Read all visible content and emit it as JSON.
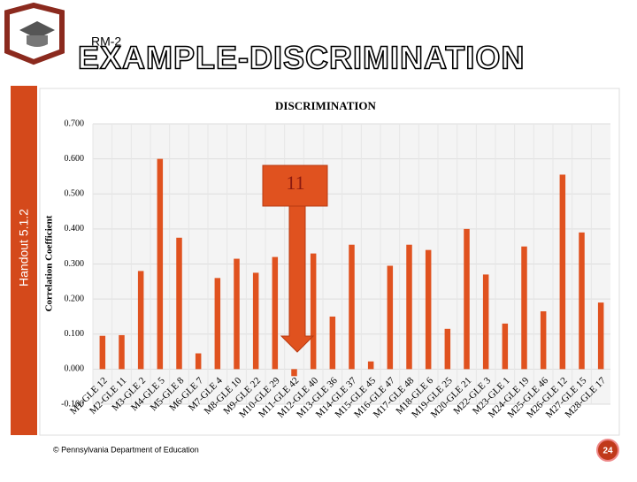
{
  "slide": {
    "tag": "RM-2",
    "title": "EXAMPLE-DISCRIMINATION",
    "side_label": "Handout 5.1.2",
    "footer": "© Pennsylvania Department of Education",
    "page_number": "24"
  },
  "chart_data": {
    "type": "bar",
    "title": "DISCRIMINATION",
    "y_label": "Correlation Coefficient",
    "callout": "11",
    "categories": [
      "M1-GLE 12",
      "M2-GLE 11",
      "M3-GLE 2",
      "M4-GLE 5",
      "M5-GLE 8",
      "M6-GLE 7",
      "M7-GLE 4",
      "M8-GLE 10",
      "M9-GLE 22",
      "M10-GLE 29",
      "M11-GLE 42",
      "M12-GLE 40",
      "M13-GLE 36",
      "M14-GLE 37",
      "M15-GLE 45",
      "M16-GLE 47",
      "M17-GLE 48",
      "M18-GLE 6",
      "M19-GLE 25",
      "M20-GLE 21",
      "M22-GLE 3",
      "M23-GLE 1",
      "M24-GLE 19",
      "M25-GLE 46",
      "M26-GLE 12",
      "M27-GLE 15",
      "M28-GLE 17"
    ],
    "values": [
      0.095,
      0.097,
      0.28,
      0.6,
      0.375,
      0.045,
      0.26,
      0.315,
      0.275,
      0.32,
      -0.02,
      0.33,
      0.15,
      0.355,
      0.022,
      0.295,
      0.355,
      0.34,
      0.115,
      0.4,
      0.27,
      0.13,
      0.35,
      0.165,
      0.555,
      0.39,
      0.19
    ],
    "color": "#e0521f",
    "ylim": [
      -0.1,
      0.7
    ],
    "yticks": [
      {
        "value": -0.1,
        "label": "-0.100"
      },
      {
        "value": 0,
        "label": "0.000"
      },
      {
        "value": 0.1,
        "label": "0.100"
      },
      {
        "value": 0.2,
        "label": "0.200"
      },
      {
        "value": 0.3,
        "label": "0.300"
      },
      {
        "value": 0.4,
        "label": "0.400"
      },
      {
        "value": 0.5,
        "label": "0.500"
      },
      {
        "value": 0.6,
        "label": "0.600"
      },
      {
        "value": 0.7,
        "label": "0.700"
      }
    ],
    "grid": true
  }
}
